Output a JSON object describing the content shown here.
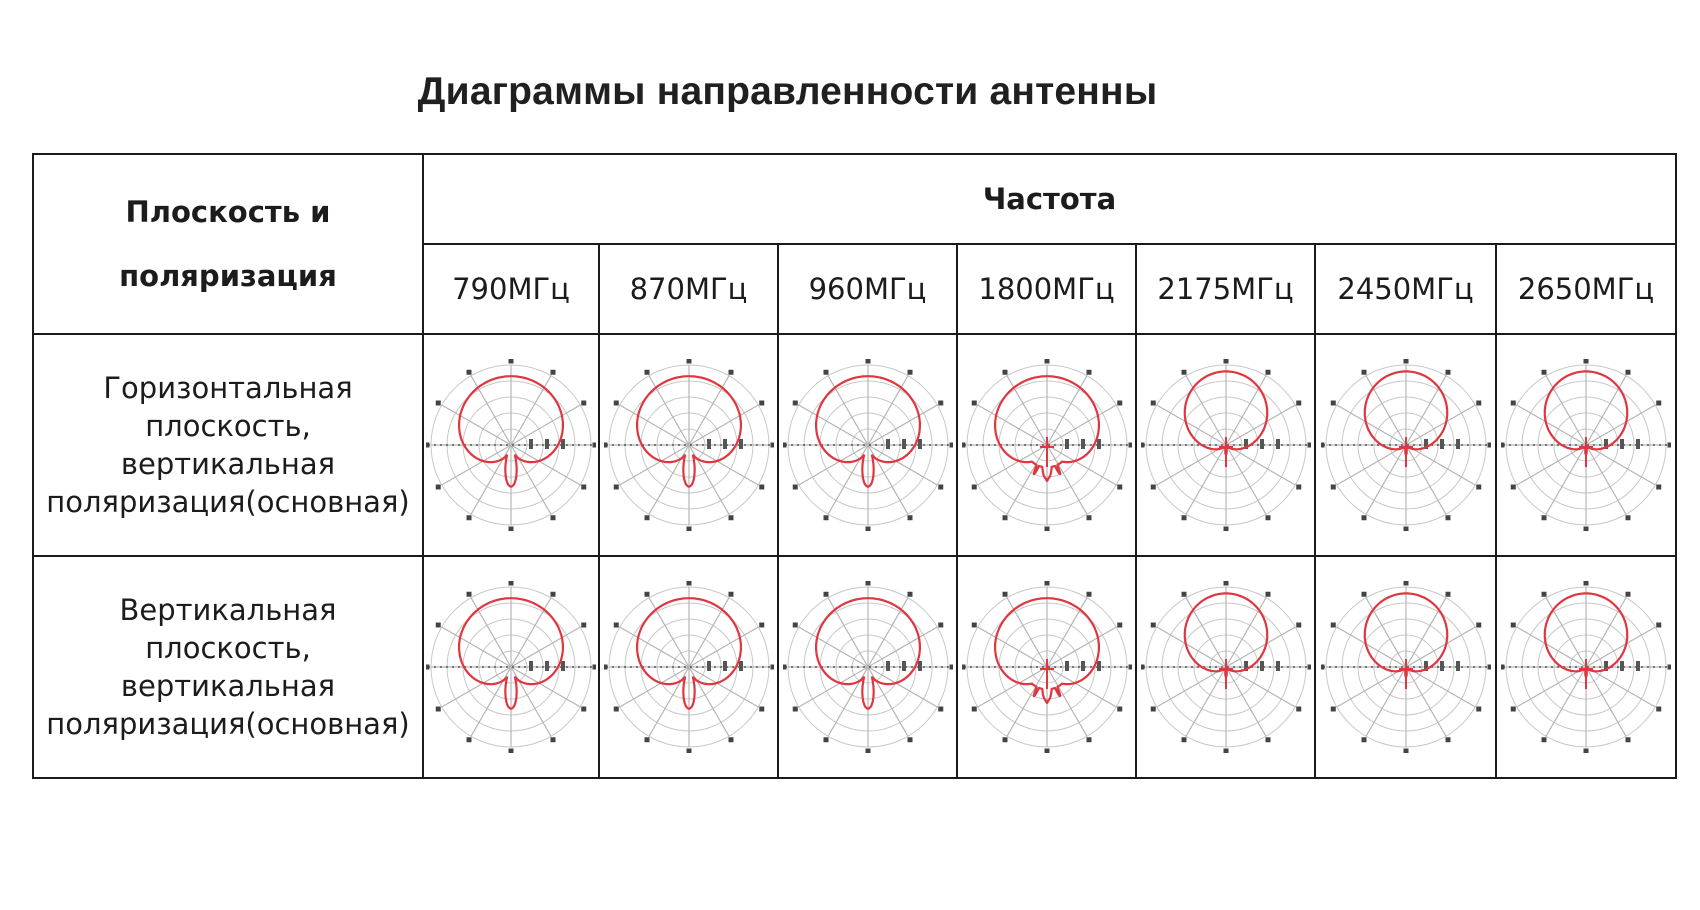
{
  "title": "Диаграммы направленности антенны",
  "table": {
    "plane_header_line1": "Плоскость и",
    "plane_header_line2": "поляризация",
    "frequency_header": "Частота",
    "frequencies": [
      "790МГц",
      "870МГц",
      "960МГц",
      "1800МГц",
      "2175МГц",
      "2450МГц",
      "2650МГц"
    ],
    "rows": [
      {
        "label_lines": [
          "Горизонтальная",
          "плоскость, вертикальная",
          "поляризация(основная)"
        ],
        "pattern_types": [
          "cardioid",
          "cardioid",
          "cardioid",
          "cardioid-lobes",
          "narrow",
          "narrow",
          "narrow-sidelobes"
        ]
      },
      {
        "label_lines": [
          "Вертикальная плоскость,",
          "вертикальная",
          "поляризация(основная)"
        ],
        "pattern_types": [
          "cardioid",
          "cardioid",
          "cardioid",
          "cardioid-lobes",
          "narrow",
          "narrow",
          "narrow-sidelobes"
        ]
      }
    ]
  },
  "colors": {
    "pattern_line": "#e0363f",
    "grid": "#c8c8c8",
    "border": "#1a1a1a"
  }
}
